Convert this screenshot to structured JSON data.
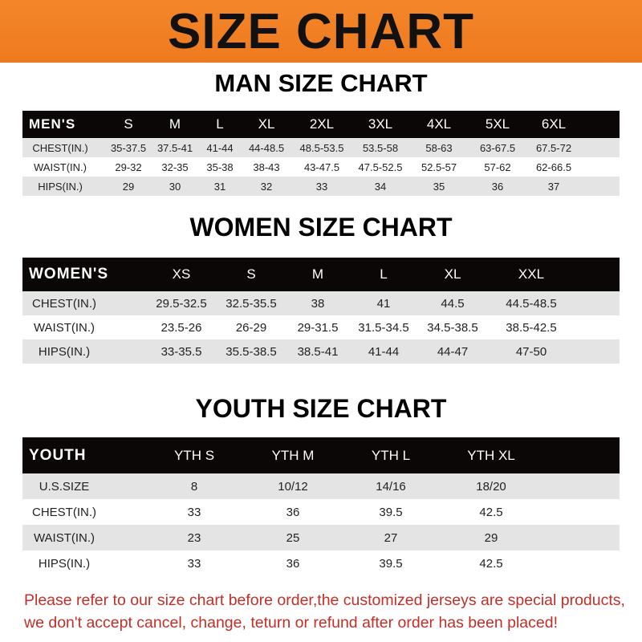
{
  "banner": {
    "title": "SIZE CHART",
    "color": "#f08020"
  },
  "men": {
    "title": "MAN SIZE CHART",
    "header": [
      "MEN'S",
      "S",
      "M",
      "L",
      "XL",
      "2XL",
      "3XL",
      "4XL",
      "5XL",
      "6XL"
    ],
    "rows": [
      [
        "CHEST(IN.)",
        "35-37.5",
        "37.5-41",
        "41-44",
        "44-48.5",
        "48.5-53.5",
        "53.5-58",
        "58-63",
        "63-67.5",
        "67.5-72"
      ],
      [
        "WAIST(IN.)",
        "29-32",
        "32-35",
        "35-38",
        "38-43",
        "43-47.5",
        "47.5-52.5",
        "52.5-57",
        "57-62",
        "62-66.5"
      ],
      [
        "HIPS(IN.)",
        "29",
        "30",
        "31",
        "32",
        "33",
        "34",
        "35",
        "36",
        "37"
      ]
    ]
  },
  "women": {
    "title": "WOMEN SIZE CHART",
    "header": [
      "WOMEN'S",
      "XS",
      "S",
      "M",
      "L",
      "XL",
      "XXL"
    ],
    "rows": [
      [
        "CHEST(IN.)",
        "29.5-32.5",
        "32.5-35.5",
        "38",
        "41",
        "44.5",
        "44.5-48.5"
      ],
      [
        "WAIST(IN.)",
        "23.5-26",
        "26-29",
        "29-31.5",
        "31.5-34.5",
        "34.5-38.5",
        "38.5-42.5"
      ],
      [
        "HIPS(IN.)",
        "33-35.5",
        "35.5-38.5",
        "38.5-41",
        "41-44",
        "44-47",
        "47-50"
      ]
    ]
  },
  "youth": {
    "title": "YOUTH SIZE CHART",
    "header": [
      "YOUTH",
      "YTH S",
      "YTH M",
      "YTH L",
      "YTH XL"
    ],
    "rows": [
      [
        "U.S.SIZE",
        "8",
        "10/12",
        "14/16",
        "18/20"
      ],
      [
        "CHEST(IN.)",
        "33",
        "36",
        "39.5",
        "42.5"
      ],
      [
        "WAIST(IN.)",
        "23",
        "25",
        "27",
        "29"
      ],
      [
        "HIPS(IN.)",
        "33",
        "36",
        "39.5",
        "42.5"
      ]
    ]
  },
  "footer": {
    "line1": "Please refer to our size chart before order,the customized jerseys are special products,",
    "line2": "we don't accept cancel, change, teturn or refund after order has been placed!"
  }
}
